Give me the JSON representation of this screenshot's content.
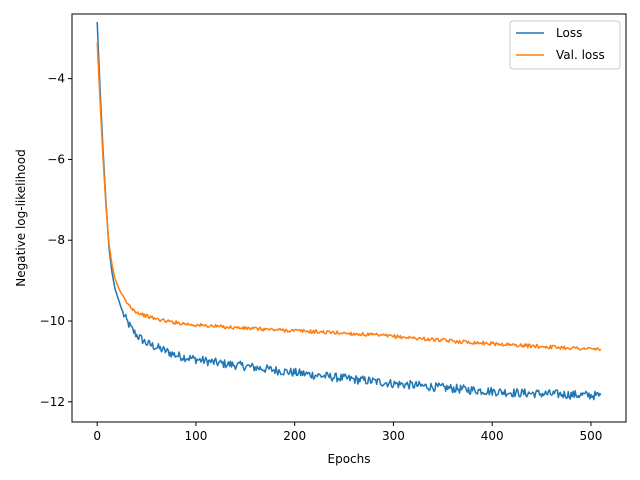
{
  "chart_data": {
    "type": "line",
    "title": "",
    "xlabel": "Epochs",
    "ylabel": "Negative log-likelihood",
    "xlim": [
      -25.5,
      535.5
    ],
    "ylim": [
      -12.5,
      -2.4
    ],
    "xticks": [
      0,
      100,
      200,
      300,
      400,
      500
    ],
    "yticks": [
      -12,
      -10,
      -8,
      -6,
      -4
    ],
    "xtick_labels": [
      "0",
      "100",
      "200",
      "300",
      "400",
      "500"
    ],
    "ytick_labels": [
      "−12",
      "−10",
      "−8",
      "−6",
      "−4"
    ],
    "grid": false,
    "legend": "top-right",
    "series": [
      {
        "name": "Loss",
        "color": "#1f77b4",
        "x": [
          0,
          3,
          6,
          9,
          12,
          15,
          18,
          22,
          26,
          30,
          35,
          40,
          50,
          60,
          70,
          80,
          90,
          100,
          125,
          150,
          175,
          200,
          225,
          250,
          275,
          300,
          325,
          350,
          375,
          400,
          425,
          450,
          475,
          500,
          510
        ],
        "y": [
          -2.6,
          -4.3,
          -5.8,
          -7.1,
          -8.2,
          -8.8,
          -9.2,
          -9.5,
          -9.8,
          -10.0,
          -10.2,
          -10.35,
          -10.55,
          -10.65,
          -10.75,
          -10.85,
          -10.9,
          -10.95,
          -11.05,
          -11.12,
          -11.2,
          -11.28,
          -11.35,
          -11.42,
          -11.48,
          -11.55,
          -11.6,
          -11.65,
          -11.7,
          -11.74,
          -11.78,
          -11.8,
          -11.82,
          -11.84,
          -11.85
        ]
      },
      {
        "name": "Val. loss",
        "color": "#ff7f0e",
        "x": [
          0,
          3,
          6,
          9,
          12,
          15,
          18,
          22,
          26,
          30,
          35,
          40,
          50,
          60,
          70,
          80,
          90,
          100,
          125,
          150,
          175,
          200,
          225,
          250,
          275,
          300,
          325,
          350,
          375,
          400,
          425,
          450,
          475,
          500,
          510
        ],
        "y": [
          -3.1,
          -4.6,
          -6.0,
          -7.2,
          -8.1,
          -8.6,
          -8.95,
          -9.2,
          -9.4,
          -9.55,
          -9.68,
          -9.78,
          -9.88,
          -9.95,
          -10.0,
          -10.04,
          -10.07,
          -10.1,
          -10.14,
          -10.18,
          -10.21,
          -10.24,
          -10.27,
          -10.3,
          -10.34,
          -10.38,
          -10.43,
          -10.48,
          -10.52,
          -10.56,
          -10.6,
          -10.63,
          -10.66,
          -10.69,
          -10.7
        ]
      }
    ]
  }
}
